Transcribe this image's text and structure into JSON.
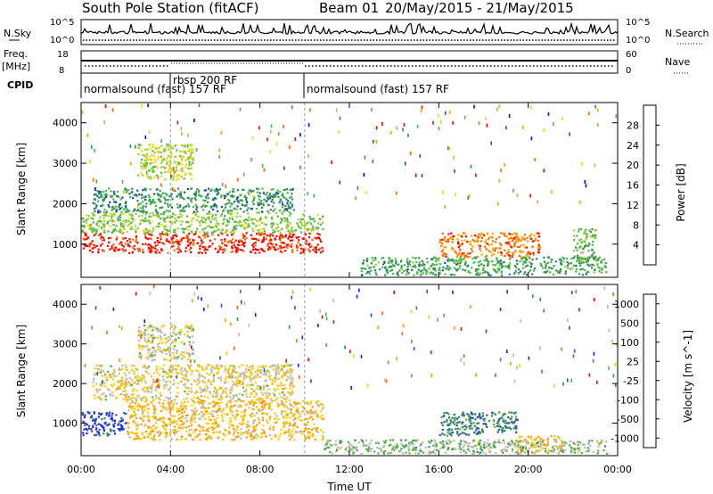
{
  "header": {
    "station": "South Pole Station (fitACF)",
    "beam": "Beam 01",
    "date_range": "20/May/2015 - 21/May/2015"
  },
  "left_labels": {
    "nsky": "N.Sky",
    "freq": "Freq.",
    "freq_unit": "[MHz]",
    "cpid": "CPID"
  },
  "right_labels": {
    "nsearch": "N.Search",
    "nave": "Nave"
  },
  "noise_axis": {
    "top": "10^5",
    "bottom": "10^0"
  },
  "freq_axis": {
    "top": "18",
    "bottom": "8"
  },
  "nave_axis": {
    "top": "60",
    "bottom": "0"
  },
  "cpid_labels": [
    {
      "text": "normalsound (fast) 157 RF",
      "start_hour": 0
    },
    {
      "text": "rbsp 200 RF",
      "start_hour": 4
    },
    {
      "text": "normalsound (fast) 157 RF",
      "start_hour": 10
    }
  ],
  "colors": {
    "power_scale": [
      "#0000ff",
      "#1f4ea6",
      "#2e8b57",
      "#48b84a",
      "#9acd32",
      "#ffd700",
      "#ffa500",
      "#ff6a00",
      "#ff0000"
    ],
    "velocity_scale": [
      "#1a1aff",
      "#2a52a8",
      "#2e8b57",
      "#55b043",
      "#b8b8b8",
      "#ffcc00",
      "#ff9a00",
      "#ff6000",
      "#ff0000"
    ]
  },
  "chart_data": [
    {
      "type": "heatmap",
      "panel": "power",
      "xlabel": "",
      "ylabel": "Slant Range [km]",
      "xlim": [
        0,
        24
      ],
      "ylim": [
        180,
        4500
      ],
      "y_ticks": [
        1000,
        2000,
        3000,
        4000
      ],
      "x_ticks": [
        "00:00",
        "04:00",
        "08:00",
        "12:00",
        "16:00",
        "20:00",
        "00:00"
      ],
      "colorbar": {
        "label": "Power [dB]",
        "ticks": [
          4,
          8,
          12,
          16,
          20,
          24,
          28
        ],
        "range": [
          0,
          30
        ]
      },
      "regions": [
        {
          "x0": 0.0,
          "x1": 10.8,
          "y0": 800,
          "y1": 1300,
          "value": 28
        },
        {
          "x0": 0.0,
          "x1": 10.8,
          "y0": 1300,
          "y1": 1800,
          "value": 14
        },
        {
          "x0": 0.5,
          "x1": 9.5,
          "y0": 1800,
          "y1": 2400,
          "value": 9
        },
        {
          "x0": 2.5,
          "x1": 5.0,
          "y0": 2600,
          "y1": 3500,
          "value": 16
        },
        {
          "x0": 16.0,
          "x1": 20.5,
          "y0": 700,
          "y1": 1300,
          "value": 24
        },
        {
          "x0": 12.5,
          "x1": 23.5,
          "y0": 250,
          "y1": 700,
          "value": 10
        },
        {
          "x0": 22.0,
          "x1": 23.0,
          "y0": 600,
          "y1": 1400,
          "value": 12
        }
      ]
    },
    {
      "type": "heatmap",
      "panel": "velocity",
      "xlabel": "Time UT",
      "ylabel": "Slant Range [km]",
      "xlim": [
        0,
        24
      ],
      "ylim": [
        180,
        4500
      ],
      "y_ticks": [
        1000,
        2000,
        3000,
        4000
      ],
      "x_ticks": [
        "00:00",
        "04:00",
        "08:00",
        "12:00",
        "16:00",
        "20:00",
        "00:00"
      ],
      "colorbar": {
        "label": "Velocity [m s^-1]",
        "ticks": [
          1000,
          500,
          100,
          25,
          -25,
          -100,
          -500,
          -1000
        ],
        "range": [
          -1200,
          1200
        ]
      },
      "regions": [
        {
          "x0": 0.0,
          "x1": 2.0,
          "y0": 700,
          "y1": 1300,
          "value": 900
        },
        {
          "x0": 2.0,
          "x1": 10.8,
          "y0": 600,
          "y1": 1600,
          "value": -350
        },
        {
          "x0": 0.5,
          "x1": 9.5,
          "y0": 1600,
          "y1": 2500,
          "value": -150
        },
        {
          "x0": 2.5,
          "x1": 5.0,
          "y0": 2600,
          "y1": 3500,
          "value": -60
        },
        {
          "x0": 16.0,
          "x1": 19.5,
          "y0": 700,
          "y1": 1300,
          "value": 600
        },
        {
          "x0": 19.5,
          "x1": 21.5,
          "y0": 250,
          "y1": 700,
          "value": -400
        },
        {
          "x0": 10.8,
          "x1": 23.5,
          "y0": 250,
          "y1": 600,
          "value": 150
        }
      ]
    }
  ]
}
